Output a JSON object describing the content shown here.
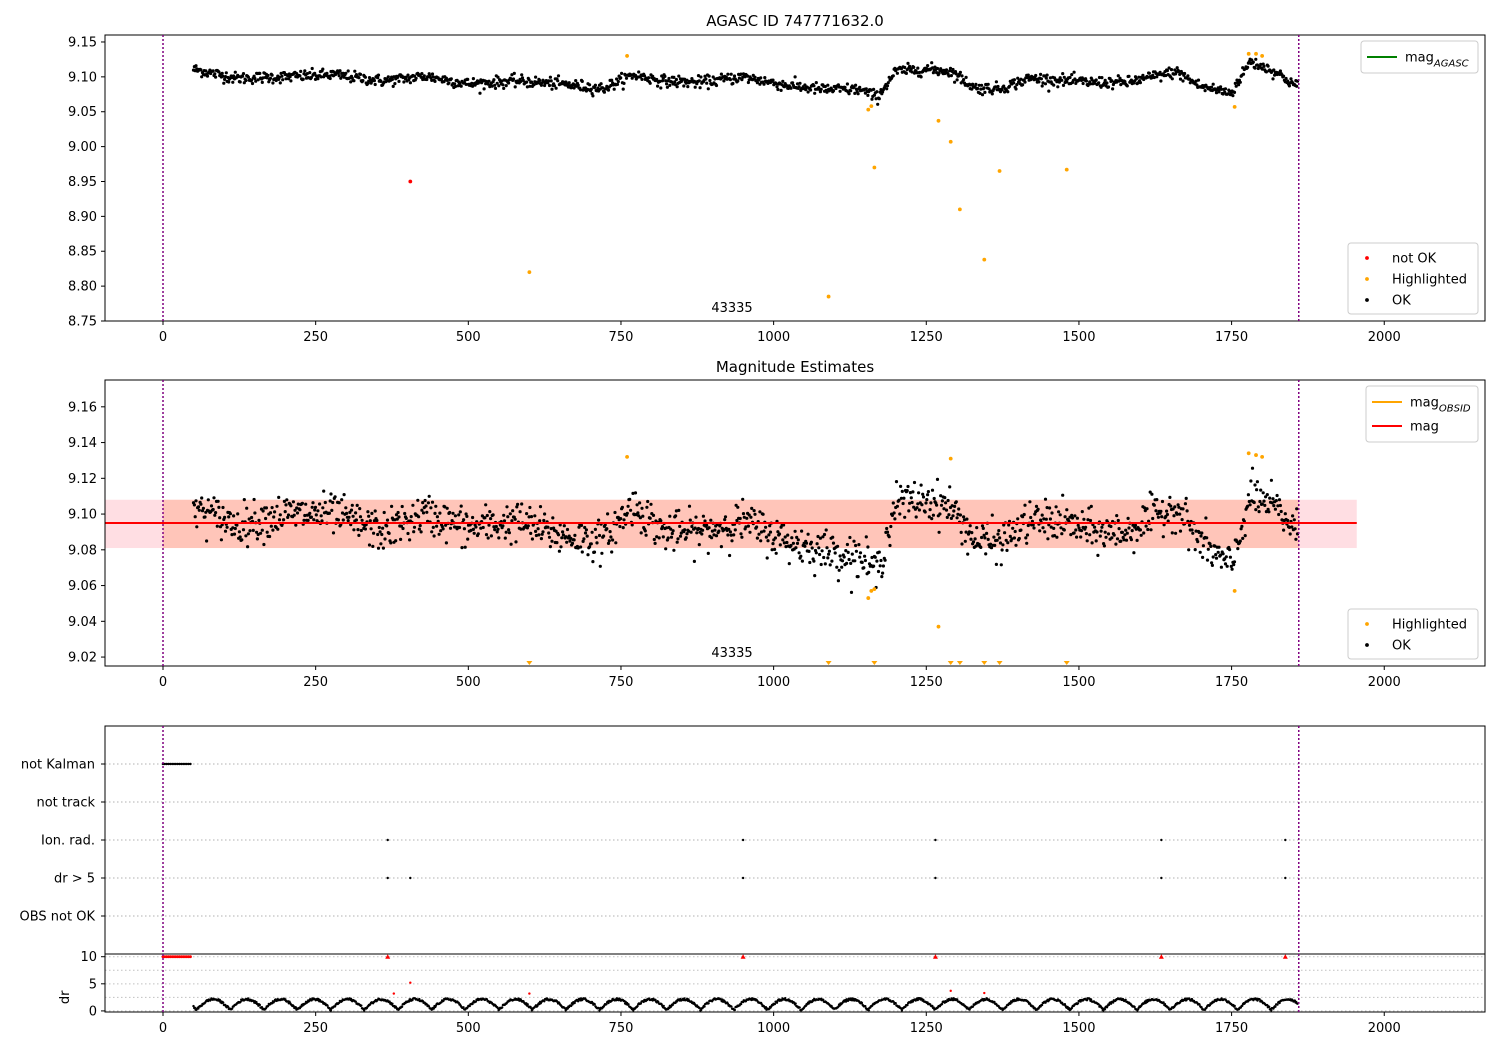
{
  "chart_data": [
    {
      "type": "scatter",
      "title": "AGASC ID 747771632.0",
      "annotation": "43335",
      "xlim": [
        -95,
        2165
      ],
      "ylim": [
        8.75,
        9.16
      ],
      "xticks": [
        "0",
        "250",
        "500",
        "750",
        "1000",
        "1250",
        "1500",
        "1750",
        "2000"
      ],
      "yticks": [
        "8.75",
        "8.80",
        "8.85",
        "8.90",
        "8.95",
        "9.00",
        "9.05",
        "9.10",
        "9.15"
      ],
      "obsid_boundaries": [
        0,
        1860
      ],
      "line_series": [
        {
          "name": "mag_AGASC",
          "color": "#008000",
          "legend": [
            "mag",
            "AGASC"
          ]
        }
      ],
      "point_legend": [
        {
          "name": "not OK",
          "color": "#ff0000"
        },
        {
          "name": "Highlighted",
          "color": "#ffa500"
        },
        {
          "name": "OK",
          "color": "#000000"
        }
      ],
      "ok_points_trend": {
        "x": [
          50,
          120,
          200,
          280,
          360,
          430,
          500,
          580,
          650,
          720,
          770,
          820,
          880,
          950,
          1020,
          1080,
          1140,
          1170,
          1200,
          1250,
          1290,
          1330,
          1370,
          1420,
          1470,
          1520,
          1580,
          1630,
          1660,
          1700,
          1750,
          1780,
          1820,
          1858
        ],
        "y": [
          9.111,
          9.098,
          9.1,
          9.103,
          9.094,
          9.101,
          9.09,
          9.094,
          9.09,
          9.083,
          9.103,
          9.094,
          9.092,
          9.1,
          9.088,
          9.082,
          9.082,
          9.071,
          9.108,
          9.111,
          9.108,
          9.084,
          9.083,
          9.098,
          9.095,
          9.092,
          9.092,
          9.102,
          9.107,
          9.086,
          9.077,
          9.122,
          9.108,
          9.086
        ],
        "noise": 0.0075,
        "count": 1350
      },
      "highlighted": {
        "x": [
          600,
          760,
          1090,
          1155,
          1160,
          1165,
          1270,
          1290,
          1305,
          1345,
          1370,
          1480,
          1755,
          1778,
          1790,
          1800
        ],
        "y": [
          8.82,
          9.13,
          8.785,
          9.053,
          9.058,
          8.97,
          9.037,
          9.007,
          8.91,
          8.838,
          8.965,
          8.967,
          9.057,
          9.133,
          9.133,
          9.13
        ]
      },
      "not_ok": {
        "x": [
          405
        ],
        "y": [
          8.95
        ]
      }
    },
    {
      "type": "scatter",
      "title": "Magnitude Estimates",
      "annotation": "43335",
      "xlim": [
        -95,
        2165
      ],
      "ylim": [
        9.015,
        9.175
      ],
      "xticks": [
        "0",
        "250",
        "500",
        "750",
        "1000",
        "1250",
        "1500",
        "1750",
        "2000"
      ],
      "yticks": [
        "9.02",
        "9.04",
        "9.06",
        "9.08",
        "9.10",
        "9.12",
        "9.14",
        "9.16"
      ],
      "obsid_boundaries": [
        0,
        1860
      ],
      "mag": 9.095,
      "mag_band_outer": {
        "x": [
          -95,
          1955
        ],
        "y": [
          9.081,
          9.108
        ],
        "color": "#ffb6c1"
      },
      "mag_band_inner": {
        "x": [
          0,
          1860
        ],
        "y": [
          9.081,
          9.108
        ],
        "color": "#ffa07a"
      },
      "line_series": [
        {
          "name": "mag_OBSID",
          "color": "#ffa500",
          "legend": [
            "mag",
            "OBSID"
          ]
        },
        {
          "name": "mag",
          "color": "#ff0000",
          "legend": [
            "mag",
            ""
          ]
        }
      ],
      "point_legend": [
        {
          "name": "Highlighted",
          "color": "#ffa500"
        },
        {
          "name": "OK",
          "color": "#000000"
        }
      ],
      "ok_points_trend": {
        "x": [
          50,
          120,
          200,
          280,
          360,
          430,
          500,
          580,
          650,
          720,
          770,
          820,
          880,
          950,
          1020,
          1080,
          1140,
          1170,
          1200,
          1250,
          1290,
          1330,
          1370,
          1420,
          1470,
          1520,
          1580,
          1630,
          1660,
          1700,
          1750,
          1780,
          1820,
          1858
        ],
        "y": [
          9.104,
          9.094,
          9.1,
          9.1,
          9.09,
          9.1,
          9.092,
          9.096,
          9.088,
          9.085,
          9.105,
          9.09,
          9.09,
          9.096,
          9.085,
          9.08,
          9.076,
          9.068,
          9.106,
          9.108,
          9.104,
          9.085,
          9.084,
          9.096,
          9.096,
          9.09,
          9.09,
          9.1,
          9.104,
          9.084,
          9.07,
          9.11,
          9.104,
          9.09
        ],
        "noise": 0.01,
        "count": 1350
      },
      "highlighted": {
        "x": [
          760,
          1155,
          1160,
          1165,
          1270,
          1290,
          1755,
          1778,
          1790,
          1800
        ],
        "y": [
          9.132,
          9.053,
          9.057,
          9.058,
          9.037,
          9.131,
          9.057,
          9.134,
          9.133,
          9.132
        ]
      },
      "off_scale_markers": [
        600,
        1090,
        1165,
        1290,
        1305,
        1345,
        1370,
        1480
      ]
    },
    {
      "type": "scatter",
      "xlim": [
        -95,
        2165
      ],
      "xticks": [
        "0",
        "250",
        "500",
        "750",
        "1000",
        "1250",
        "1500",
        "1750",
        "2000"
      ],
      "obsid_boundaries": [
        0,
        1860
      ],
      "flag_rows": [
        "not Kalman",
        "not track",
        "Ion. rad.",
        "dr > 5",
        "OBS not OK"
      ],
      "flags": {
        "not Kalman": {
          "x_range": [
            0,
            45
          ]
        },
        "not track": {
          "x": []
        },
        "Ion. rad.": {
          "x": [
            368,
            950,
            1265,
            1635,
            1838
          ]
        },
        "dr > 5": {
          "x": [
            368,
            405,
            950,
            1265,
            1635,
            1838
          ]
        },
        "OBS not OK": {
          "x": []
        }
      }
    },
    {
      "type": "scatter",
      "ylabel": "dr",
      "xlim": [
        -95,
        2165
      ],
      "ylim": [
        -0.2,
        10.5
      ],
      "xticks": [
        "0",
        "250",
        "500",
        "750",
        "1000",
        "1250",
        "1500",
        "1750",
        "2000"
      ],
      "yticks": [
        "0",
        "5",
        "10"
      ],
      "obsid_boundaries": [
        0,
        1860
      ],
      "saturated_x": [
        368,
        950,
        1265,
        1635,
        1838
      ],
      "saturated_range": [
        0,
        45
      ],
      "saturated_value": 10,
      "red_points": {
        "x": [
          378,
          405,
          600,
          1290,
          1345
        ],
        "y": [
          3.2,
          5.2,
          3.2,
          3.7,
          3.3
        ]
      },
      "ok_dr": {
        "x_range": [
          50,
          1858
        ],
        "typical": [
          0,
          2.8
        ],
        "count": 1600
      }
    }
  ]
}
